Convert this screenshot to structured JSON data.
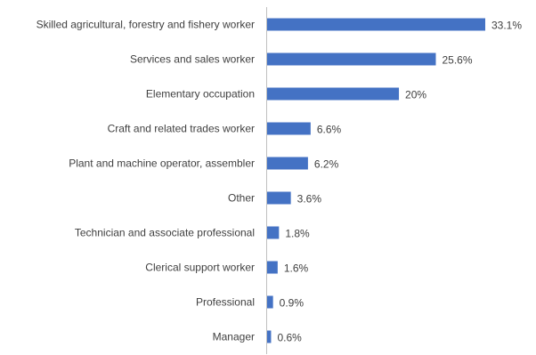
{
  "chart_data": {
    "type": "bar",
    "orientation": "horizontal",
    "categories": [
      "Skilled agricultural, forestry and fishery worker",
      "Services and sales worker",
      "Elementary occupation",
      "Craft and related trades worker",
      "Plant and machine operator, assembler",
      "Other",
      "Technician and associate professional",
      "Clerical support worker",
      "Professional",
      "Manager"
    ],
    "values": [
      33.1,
      25.6,
      20,
      6.6,
      6.2,
      3.6,
      1.8,
      1.6,
      0.9,
      0.6
    ],
    "value_labels": [
      "33.1%",
      "25.6%",
      "20%",
      "6.6%",
      "6.2%",
      "3.6%",
      "1.8%",
      "1.6%",
      "0.9%",
      "0.6%"
    ],
    "title": "",
    "xlabel": "",
    "ylabel": "",
    "xlim": [
      0,
      35
    ],
    "grid": false,
    "legend": "none",
    "colors": {
      "bar": "#4472c4",
      "axis": "#bfbfbf",
      "text": "#404040"
    }
  }
}
